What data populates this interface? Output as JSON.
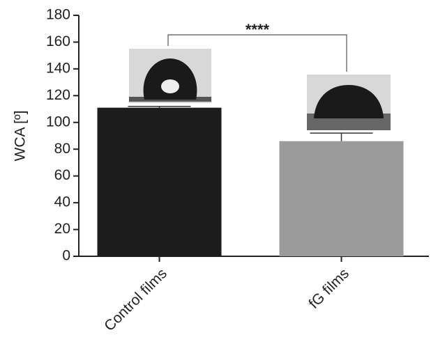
{
  "chart_data": {
    "type": "bar",
    "ylabel": "WCA [º]",
    "categories": [
      "Control films",
      "fG films"
    ],
    "values": [
      111,
      86
    ],
    "errors": [
      1,
      6
    ],
    "colors": [
      "#1c1c1c",
      "#9b9b9b"
    ],
    "ylim": [
      0,
      180
    ],
    "yticks": [
      0,
      20,
      40,
      60,
      80,
      100,
      120,
      140,
      160,
      180
    ],
    "annotation": "****"
  }
}
